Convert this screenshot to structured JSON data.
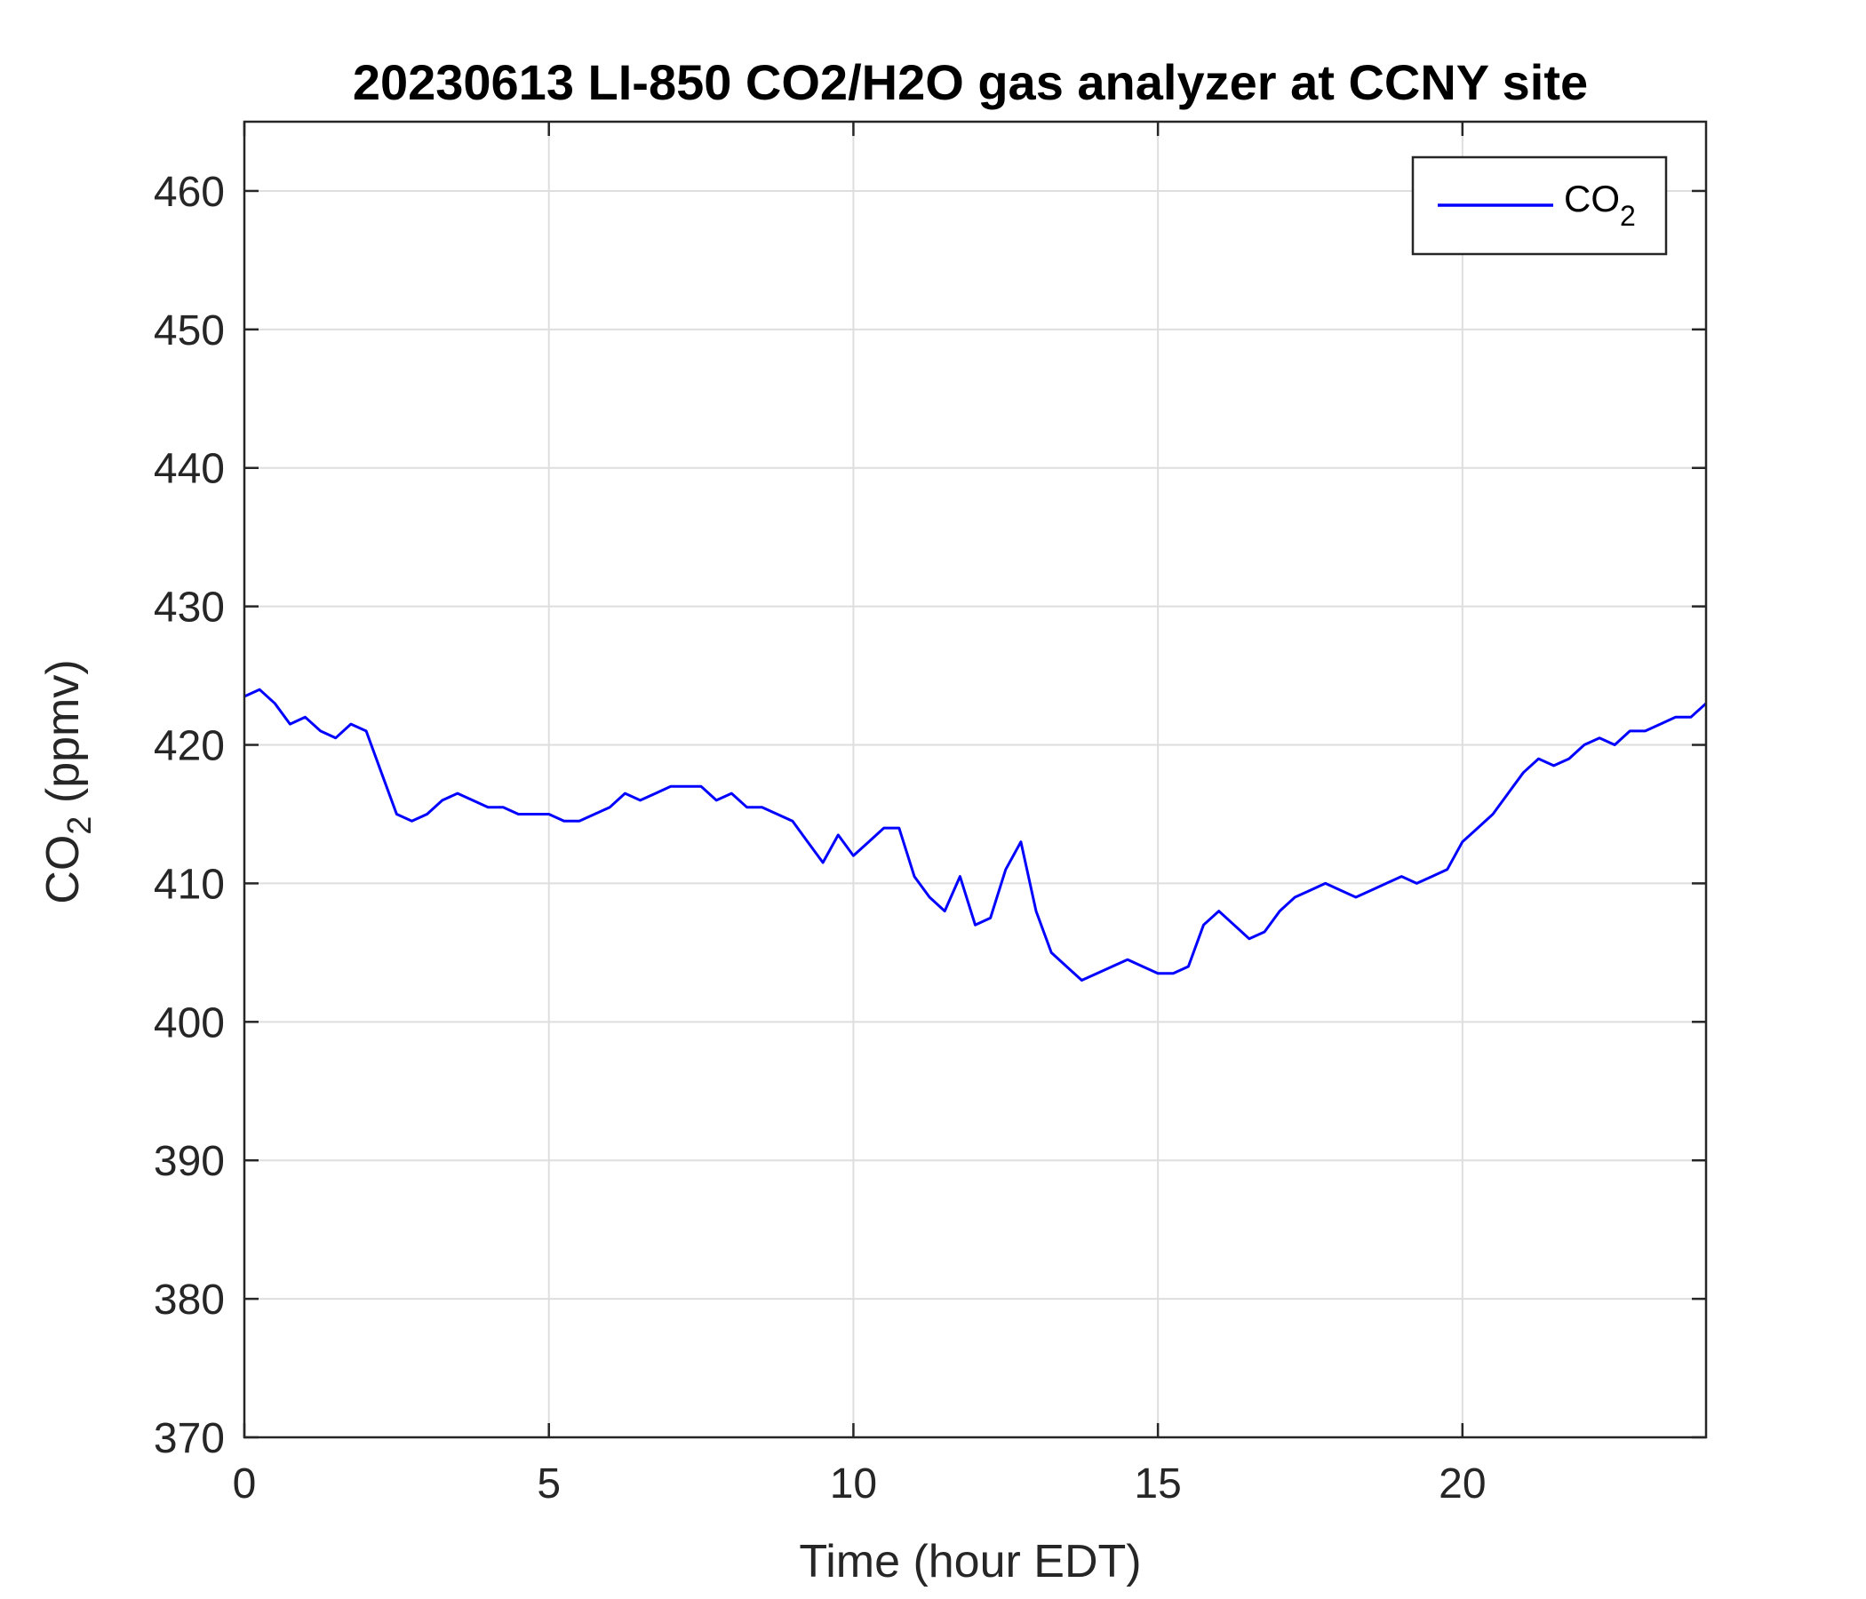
{
  "chart_data": {
    "type": "line",
    "title": "20230613 LI-850 CO2/H2O gas analyzer at CCNY site",
    "xlabel": "Time (hour EDT)",
    "ylabel": {
      "base": "CO",
      "sub": "2",
      "rest": " (ppmv)"
    },
    "xlim": [
      0,
      24
    ],
    "ylim": [
      370,
      465
    ],
    "xticks": [
      0,
      5,
      10,
      15,
      20
    ],
    "yticks": [
      370,
      380,
      390,
      400,
      410,
      420,
      430,
      440,
      450,
      460
    ],
    "grid": true,
    "legend_position": "top-right",
    "series": [
      {
        "name": "CO",
        "name_sub": "2",
        "color": "#0000ff",
        "x": [
          0,
          0.25,
          0.5,
          0.75,
          1,
          1.25,
          1.5,
          1.75,
          2,
          2.25,
          2.5,
          2.75,
          3,
          3.25,
          3.5,
          3.75,
          4,
          4.25,
          4.5,
          4.75,
          5,
          5.25,
          5.5,
          5.75,
          6,
          6.25,
          6.5,
          6.75,
          7,
          7.25,
          7.5,
          7.75,
          8,
          8.25,
          8.5,
          8.75,
          9,
          9.25,
          9.5,
          9.75,
          10,
          10.25,
          10.5,
          10.75,
          11,
          11.25,
          11.5,
          11.75,
          12,
          12.25,
          12.5,
          12.75,
          13,
          13.25,
          13.5,
          13.75,
          14,
          14.25,
          14.5,
          14.75,
          15,
          15.25,
          15.5,
          15.75,
          16,
          16.25,
          16.5,
          16.75,
          17,
          17.25,
          17.5,
          17.75,
          18,
          18.25,
          18.5,
          18.75,
          19,
          19.25,
          19.5,
          19.75,
          20,
          20.25,
          20.5,
          20.75,
          21,
          21.25,
          21.5,
          21.75,
          22,
          22.25,
          22.5,
          22.75,
          23,
          23.25,
          23.5,
          23.75,
          24
        ],
        "y": [
          423.5,
          424,
          423,
          421.5,
          422,
          421,
          420.5,
          421.5,
          421,
          418,
          415,
          414.5,
          415,
          416,
          416.5,
          416,
          415.5,
          415.5,
          415,
          415,
          415,
          414.5,
          414.5,
          415,
          415.5,
          416.5,
          416,
          416.5,
          417,
          417,
          417,
          416,
          416.5,
          415.5,
          415.5,
          415,
          414.5,
          413,
          411.5,
          413.5,
          412,
          413,
          414,
          414,
          410.5,
          409,
          408,
          410.5,
          407,
          407.5,
          411,
          413,
          408,
          405,
          404,
          403,
          403.5,
          404,
          404.5,
          404,
          403.5,
          403.5,
          404,
          407,
          408,
          407,
          406,
          406.5,
          408,
          409,
          409.5,
          410,
          409.5,
          409,
          409.5,
          410,
          410.5,
          410,
          410.5,
          411,
          413,
          414,
          415,
          416.5,
          418,
          419,
          418.5,
          419,
          420,
          420.5,
          420,
          421,
          421,
          421.5,
          422,
          422,
          423
        ]
      }
    ]
  }
}
